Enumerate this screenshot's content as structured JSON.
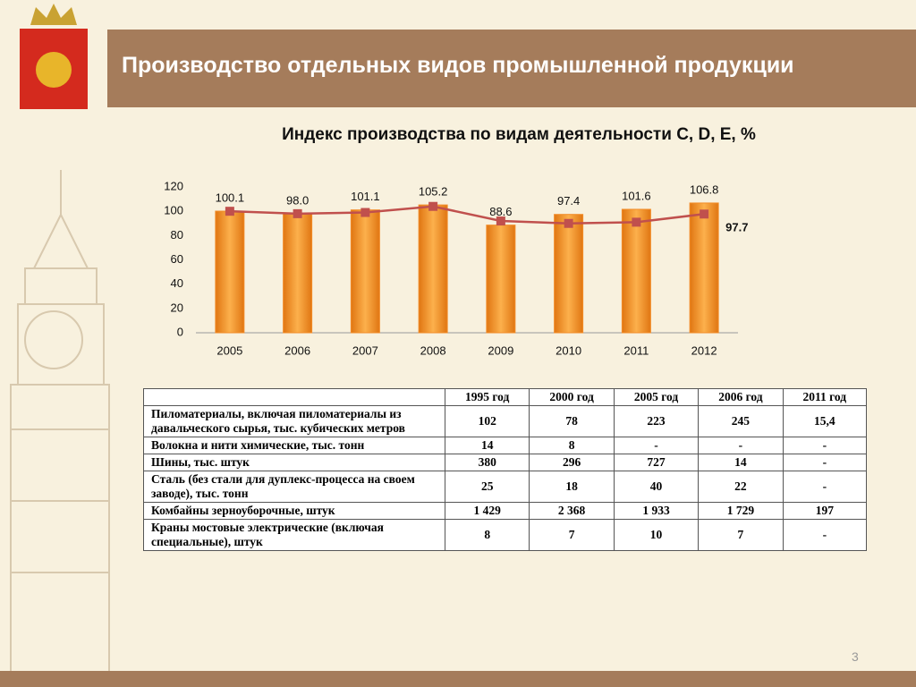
{
  "header": {
    "title": "Производство отдельных видов промышленной продукции"
  },
  "chart_data": {
    "type": "bar",
    "title": "Индекс производства по видам деятельности C, D, E, %",
    "categories": [
      "2005",
      "2006",
      "2007",
      "2008",
      "2009",
      "2010",
      "2011",
      "2012"
    ],
    "series": [
      {
        "type": "bar",
        "color": "#f28c28",
        "values": [
          100.1,
          98.0,
          101.1,
          105.2,
          88.6,
          97.4,
          101.6,
          106.8
        ],
        "value_labels": [
          "100.1",
          "98.0",
          "101.1",
          "105.2",
          "88.6",
          "97.4",
          "101.6",
          "106.8"
        ]
      },
      {
        "type": "line",
        "color": "#c0504d",
        "values": [
          100,
          98,
          99,
          104,
          92,
          90,
          91,
          97.7
        ],
        "value_labels": [
          null,
          null,
          null,
          null,
          null,
          null,
          null,
          "97.7"
        ]
      }
    ],
    "ylim": [
      0,
      120
    ],
    "yticks": [
      0,
      20,
      40,
      60,
      80,
      100,
      120
    ],
    "grid": false
  },
  "table": {
    "columns": [
      "1995 год",
      "2000 год",
      "2005 год",
      "2006 год",
      "2011 год"
    ],
    "rows": [
      [
        "Пиломатериалы, включая пиломатериалы из давальческого сырья, тыс. кубических метров",
        "102",
        "78",
        "223",
        "245",
        "15,4"
      ],
      [
        "Волокна и нити химические, тыс. тонн",
        "14",
        "8",
        "-",
        "-",
        "-"
      ],
      [
        "Шины, тыс. штук",
        "380",
        "296",
        "727",
        "14",
        "-"
      ],
      [
        "Сталь (без стали для дуплекс-процесса на своем заводе),   тыс. тонн",
        "25",
        "18",
        "40",
        "22",
        "-"
      ],
      [
        "Комбайны зерноуборочные,  штук",
        "1 429",
        "2 368",
        "1 933",
        "1 729",
        "197"
      ],
      [
        "Краны мостовые электрические (включая  специальные), штук",
        "8",
        "7",
        "10",
        "7",
        "-"
      ]
    ]
  },
  "page_number": "3"
}
